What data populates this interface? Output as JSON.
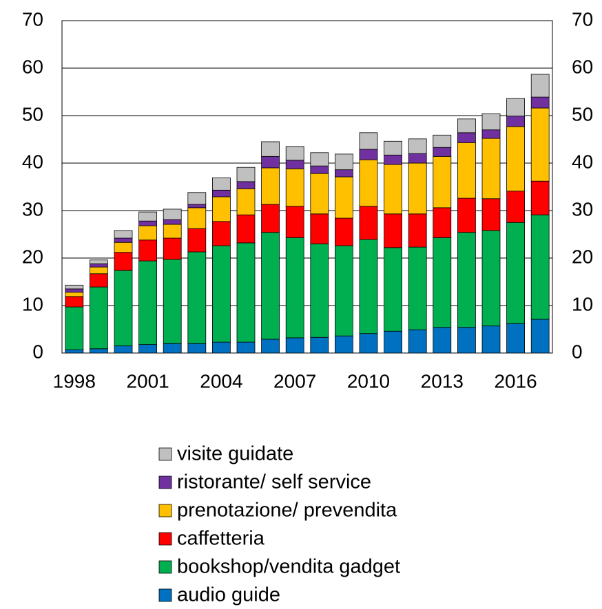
{
  "chart_data": {
    "type": "stacked_bar",
    "categories": [
      "1998",
      null,
      null,
      "2001",
      null,
      null,
      "2004",
      null,
      null,
      "2007",
      null,
      null,
      "2010",
      null,
      null,
      "2013",
      null,
      null,
      "2016",
      null
    ],
    "series": [
      {
        "name": "audio guide",
        "color": "#0070c0",
        "values": [
          0.7,
          0.9,
          1.5,
          1.8,
          2.0,
          2.0,
          2.3,
          2.3,
          2.9,
          3.2,
          3.3,
          3.6,
          4.1,
          4.6,
          4.9,
          5.4,
          5.4,
          5.7,
          6.2,
          7.1
        ]
      },
      {
        "name": "bookshop/vendita gadget",
        "color": "#00b050",
        "values": [
          9.0,
          13.0,
          15.9,
          17.6,
          17.7,
          19.3,
          20.3,
          20.9,
          22.5,
          21.1,
          19.7,
          19.0,
          19.8,
          17.6,
          17.4,
          18.9,
          20.0,
          20.1,
          21.3,
          22.0
        ]
      },
      {
        "name": "caffetteria",
        "color": "#ff0000",
        "values": [
          2.2,
          2.8,
          3.8,
          4.4,
          4.5,
          4.9,
          5.1,
          5.9,
          5.9,
          6.6,
          6.3,
          5.8,
          7.0,
          7.1,
          7.0,
          6.3,
          7.2,
          6.7,
          6.6,
          7.1
        ]
      },
      {
        "name": "prenotazione/ prevendita",
        "color": "#ffc000",
        "values": [
          0.9,
          1.4,
          2.1,
          3.0,
          2.9,
          4.4,
          5.2,
          5.5,
          7.7,
          7.9,
          8.5,
          8.7,
          9.8,
          10.4,
          10.7,
          10.8,
          11.7,
          12.7,
          13.6,
          15.4
        ]
      },
      {
        "name": "ristorante/ self service",
        "color": "#7030a0",
        "values": [
          0.7,
          0.7,
          0.9,
          1.0,
          1.0,
          0.7,
          1.4,
          1.5,
          2.4,
          1.8,
          1.6,
          1.5,
          2.2,
          2.0,
          2.0,
          1.9,
          2.1,
          1.8,
          2.2,
          2.3
        ]
      },
      {
        "name": "visite guidate",
        "color": "#c0c0c0",
        "values": [
          0.8,
          0.8,
          1.6,
          1.9,
          2.2,
          2.5,
          2.6,
          3.0,
          3.1,
          2.9,
          2.8,
          3.3,
          3.5,
          2.9,
          3.1,
          2.6,
          2.9,
          3.4,
          3.7,
          4.8
        ]
      }
    ],
    "ylim": [
      0,
      70
    ],
    "yticks": [
      0,
      10,
      20,
      30,
      40,
      50,
      60,
      70
    ],
    "grid": true,
    "legend": "bottom"
  }
}
